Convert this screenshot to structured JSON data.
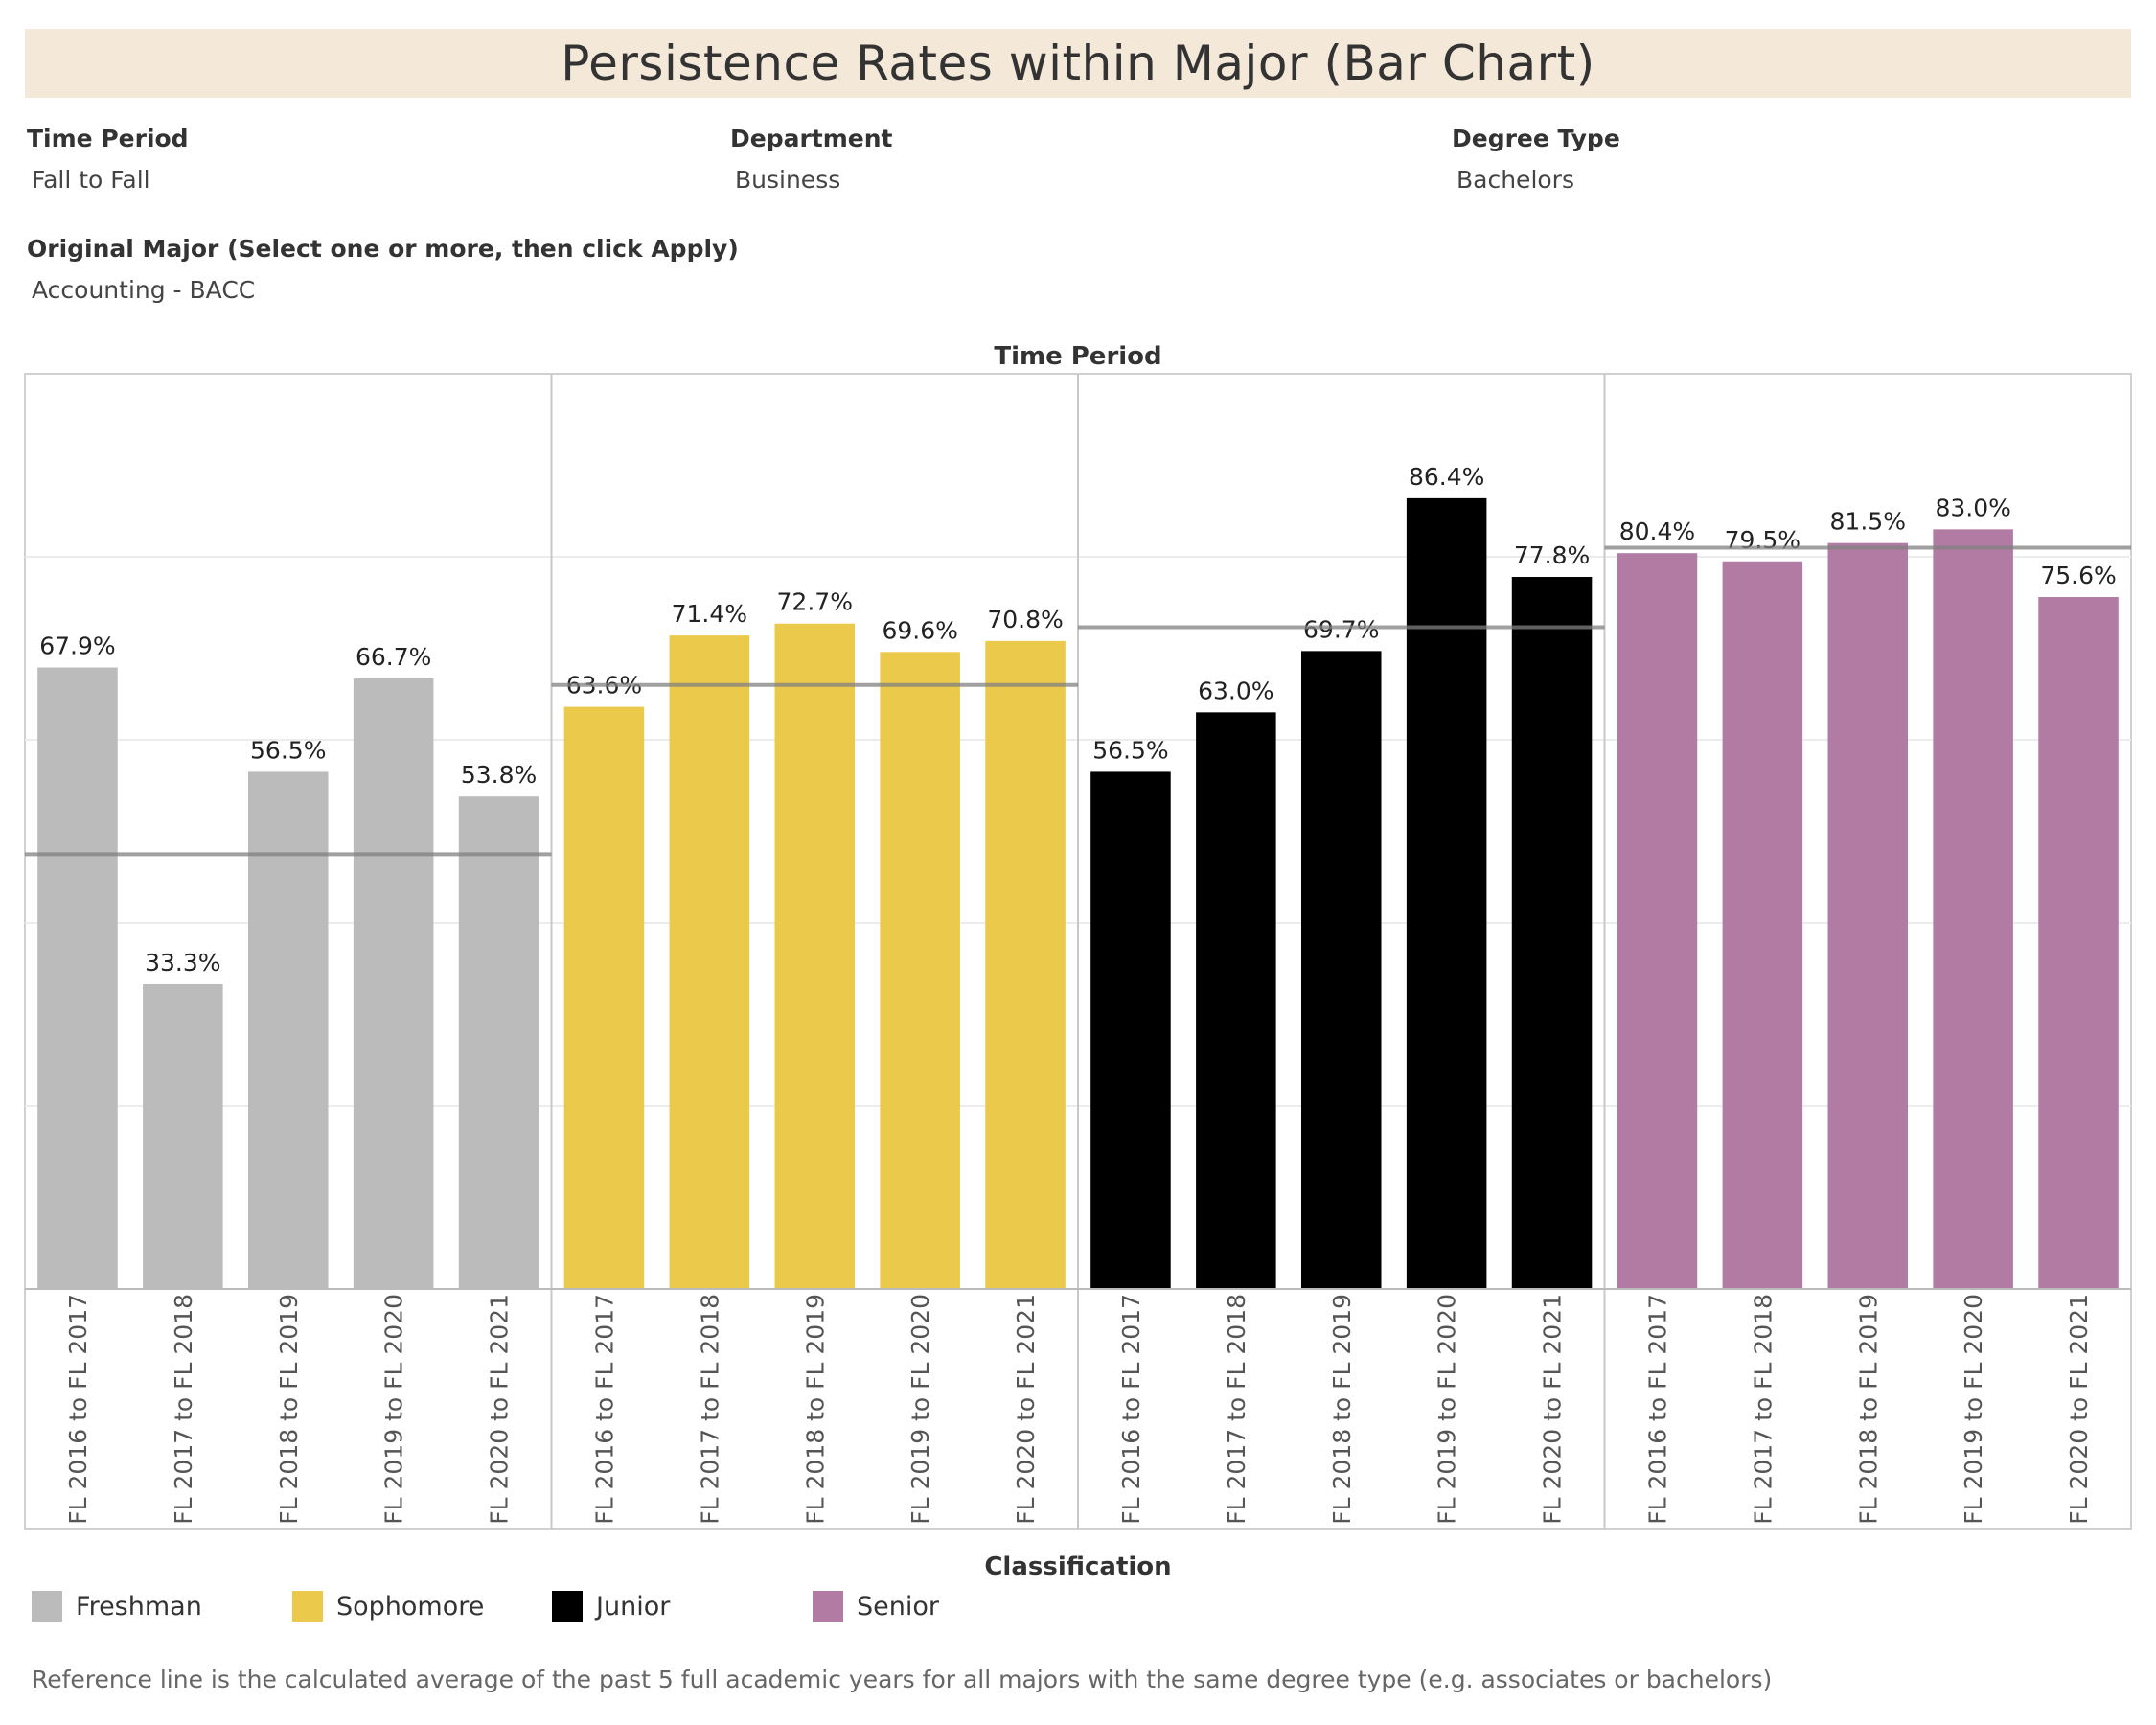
{
  "title": "Persistence Rates within Major (Bar Chart)",
  "filters": {
    "time_period": {
      "label": "Time Period",
      "value": "Fall to Fall"
    },
    "department": {
      "label": "Department",
      "value": "Business"
    },
    "degree_type": {
      "label": "Degree Type",
      "value": "Bachelors"
    },
    "original_major": {
      "label": "Original Major (Select one or more, then click Apply)",
      "value": "Accounting - BACC"
    }
  },
  "legend": {
    "title": "Classification",
    "items": [
      {
        "label": "Freshman",
        "color": "#bbbbbb"
      },
      {
        "label": "Sophomore",
        "color": "#ebc94b"
      },
      {
        "label": "Junior",
        "color": "#000000"
      },
      {
        "label": "Senior",
        "color": "#b27ba4"
      }
    ]
  },
  "footnote": "Reference line is the calculated average of the past 5 full academic years for all majors with the same degree type (e.g. associates or bachelors)",
  "chart_data": {
    "type": "bar",
    "title": "Persistence Rates within Major (Bar Chart)",
    "column_header": "Time Period",
    "categories": [
      "FL 2016 to FL 2017",
      "FL 2017 to FL 2018",
      "FL 2018 to FL 2019",
      "FL 2019 to FL 2020",
      "FL 2020 to FL 2021"
    ],
    "ylim": [
      0,
      100
    ],
    "grid": true,
    "legend_position": "bottom",
    "series": [
      {
        "name": "Freshman",
        "color": "#bbbbbb",
        "values": [
          67.9,
          33.3,
          56.5,
          66.7,
          53.8
        ],
        "labels": [
          "67.9%",
          "33.3%",
          "56.5%",
          "66.7%",
          "53.8%"
        ],
        "reference": 47.5
      },
      {
        "name": "Sophomore",
        "color": "#ebc94b",
        "values": [
          63.6,
          71.4,
          72.7,
          69.6,
          70.8
        ],
        "labels": [
          "63.6%",
          "71.4%",
          "72.7%",
          "69.6%",
          "70.8%"
        ],
        "reference": 66.0
      },
      {
        "name": "Junior",
        "color": "#000000",
        "values": [
          56.5,
          63.0,
          69.7,
          86.4,
          77.8
        ],
        "labels": [
          "56.5%",
          "63.0%",
          "69.7%",
          "86.4%",
          "77.8%"
        ],
        "reference": 72.3
      },
      {
        "name": "Senior",
        "color": "#b27ba4",
        "values": [
          80.4,
          79.5,
          81.5,
          83.0,
          75.6
        ],
        "labels": [
          "80.4%",
          "79.5%",
          "81.5%",
          "83.0%",
          "75.6%"
        ],
        "reference": 81.0
      }
    ]
  }
}
